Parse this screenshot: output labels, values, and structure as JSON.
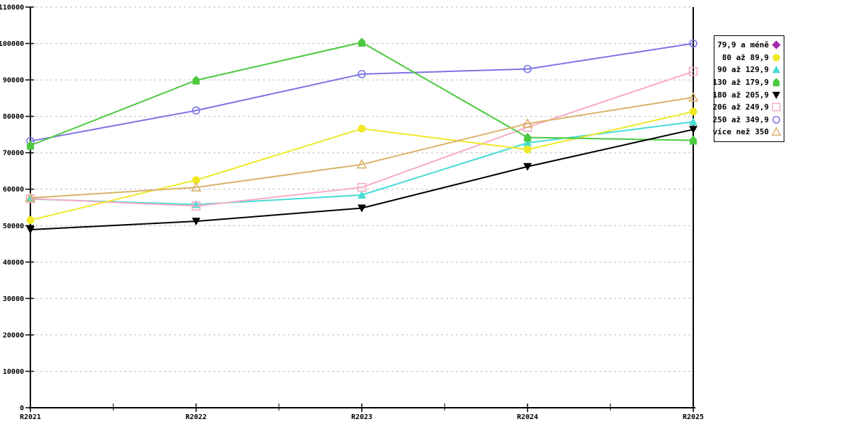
{
  "chart_data": {
    "type": "line",
    "title": "",
    "xlabel": "",
    "ylabel": "",
    "categories": [
      "R2021",
      "R2022",
      "R2023",
      "R2024",
      "R2025"
    ],
    "y_axis": {
      "min": 0,
      "max": 110000,
      "step": 10000
    },
    "y_tick_labels": [
      "0",
      "10000",
      "20000",
      "30000",
      "40000",
      "50000",
      "60000",
      "70000",
      "80000",
      "90000",
      "100000",
      "110000"
    ],
    "grid": "horizontal-dashed",
    "grid_color": "#bbbbbb",
    "axis_color": "#000000",
    "legend_position": "top-right",
    "series": [
      {
        "name": "79,9 a méně",
        "color": "#a129ad",
        "marker": "diamond-filled",
        "values": [
          null,
          null,
          null,
          null,
          null
        ]
      },
      {
        "name": "80 až 89,9",
        "color": "#f0e825",
        "marker": "circle-filled",
        "values": [
          51500,
          62500,
          76600,
          70900,
          81300
        ]
      },
      {
        "name": "90 až 129,9",
        "color": "#45dcd5",
        "marker": "triangle-up-filled",
        "values": [
          57300,
          55800,
          58400,
          72700,
          78500
        ]
      },
      {
        "name": "130 až 179,9",
        "color": "#4cc93f",
        "marker": "pentagon-filled",
        "values": [
          72000,
          89900,
          100300,
          74200,
          73400
        ]
      },
      {
        "name": "180 až 205,9",
        "color": "#000000",
        "marker": "triangle-down-filled",
        "values": [
          48900,
          51200,
          54800,
          66200,
          76400
        ]
      },
      {
        "name": "206 až 249,9",
        "color": "#f6abc6",
        "marker": "square-open",
        "values": [
          57400,
          55400,
          60500,
          77000,
          92300
        ]
      },
      {
        "name": "250 až 349,9",
        "color": "#7b74e4",
        "marker": "circle-open",
        "values": [
          73200,
          81600,
          91600,
          93000,
          100000
        ]
      },
      {
        "name": "více než 350",
        "color": "#d9b26b",
        "marker": "triangle-up-open",
        "values": [
          57600,
          60500,
          66800,
          78000,
          85200
        ]
      }
    ],
    "draw_order": [
      0,
      6,
      2,
      5,
      1,
      3,
      4,
      7
    ]
  }
}
